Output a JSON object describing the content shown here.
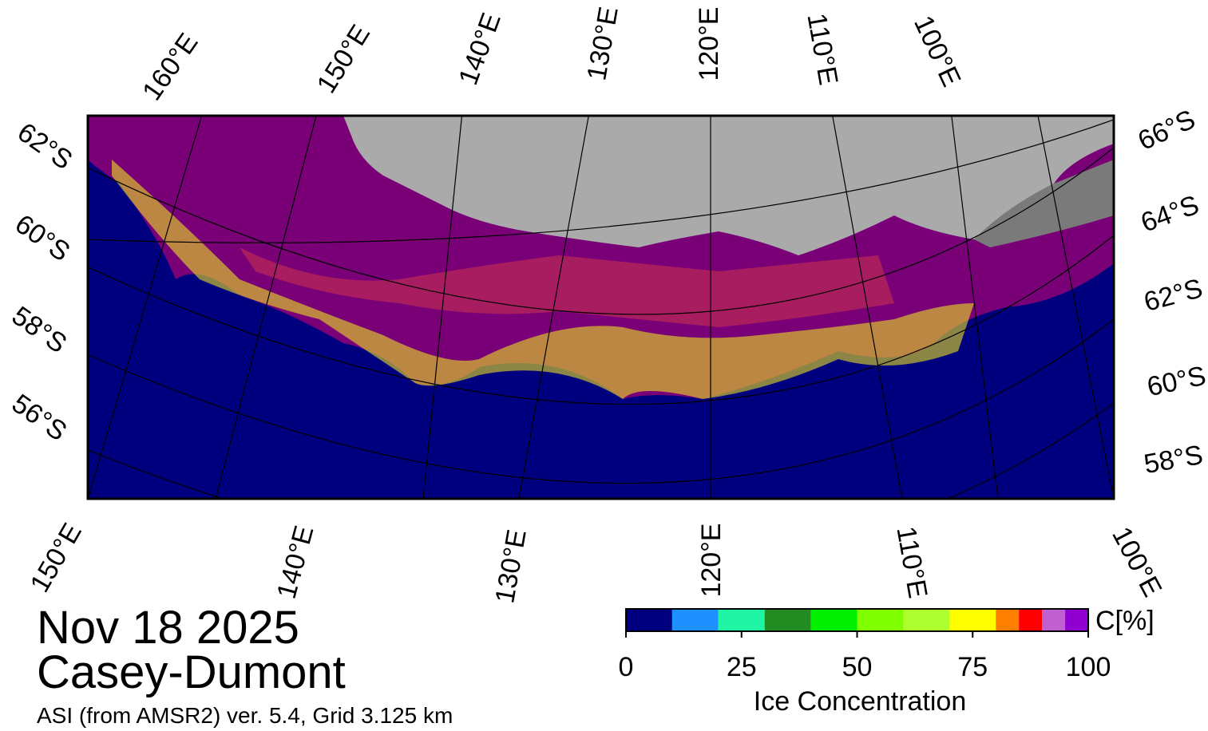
{
  "map": {
    "top_lon_labels": [
      "160°E",
      "150°E",
      "140°E",
      "130°E",
      "120°E",
      "110°E",
      "100°E"
    ],
    "bottom_lon_labels": [
      "150°E",
      "140°E",
      "130°E",
      "120°E",
      "110°E",
      "100°E"
    ],
    "left_lat_labels": [
      "62°S",
      "60°S",
      "58°S",
      "56°S"
    ],
    "right_lat_labels": [
      "66°S",
      "64°S",
      "62°S",
      "60°S",
      "58°S"
    ]
  },
  "colorbar": {
    "title": "Ice Concentration",
    "unit_label": "C[%]",
    "lim": [
      0,
      100
    ],
    "ticks": [
      0,
      25,
      50,
      75,
      100
    ],
    "bounds": [
      0,
      10,
      20,
      30,
      40,
      50,
      60,
      70,
      80,
      85,
      90,
      95,
      100
    ],
    "colors": [
      "#00007f",
      "#1e90ff",
      "#20f5a5",
      "#228b22",
      "#00f000",
      "#7fff00",
      "#adff2f",
      "#ffff00",
      "#ff8000",
      "#ff0000",
      "#c060d0",
      "#9000d0"
    ]
  },
  "caption": {
    "date": "Nov 18 2025",
    "region": "Casey-Dumont",
    "source": "ASI (from AMSR2) ver. 5.4,  Grid 3.125 km"
  }
}
